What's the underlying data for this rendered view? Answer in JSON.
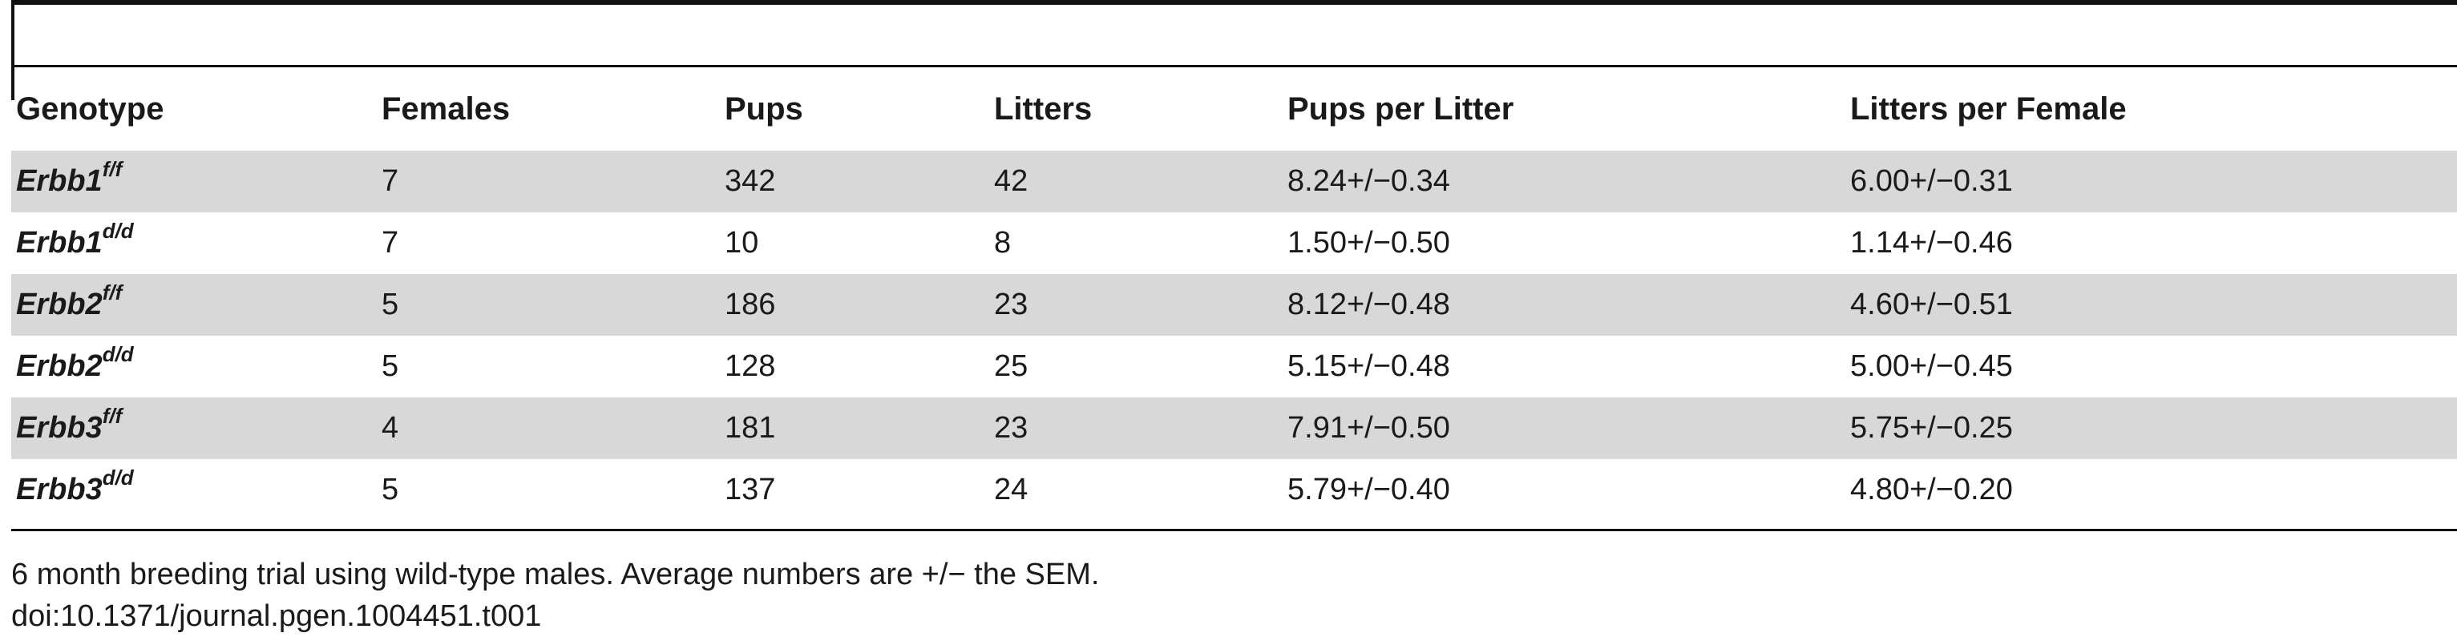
{
  "table": {
    "columns": [
      "Genotype",
      "Females",
      "Pups",
      "Litters",
      "Pups per Litter",
      "Litters per Female"
    ],
    "rows": [
      {
        "gene": "Erbb1",
        "allele": "f/f",
        "females": "7",
        "pups": "342",
        "litters": "42",
        "pups_per_litter": "8.24+/−0.34",
        "litters_per_female": "6.00+/−0.31"
      },
      {
        "gene": "Erbb1",
        "allele": "d/d",
        "females": "7",
        "pups": "10",
        "litters": "8",
        "pups_per_litter": "1.50+/−0.50",
        "litters_per_female": "1.14+/−0.46"
      },
      {
        "gene": "Erbb2",
        "allele": "f/f",
        "females": "5",
        "pups": "186",
        "litters": "23",
        "pups_per_litter": "8.12+/−0.48",
        "litters_per_female": "4.60+/−0.51"
      },
      {
        "gene": "Erbb2",
        "allele": "d/d",
        "females": "5",
        "pups": "128",
        "litters": "25",
        "pups_per_litter": "5.15+/−0.48",
        "litters_per_female": "5.00+/−0.45"
      },
      {
        "gene": "Erbb3",
        "allele": "f/f",
        "females": "4",
        "pups": "181",
        "litters": "23",
        "pups_per_litter": "7.91+/−0.50",
        "litters_per_female": "5.75+/−0.25"
      },
      {
        "gene": "Erbb3",
        "allele": "d/d",
        "females": "5",
        "pups": "137",
        "litters": "24",
        "pups_per_litter": "5.79+/−0.40",
        "litters_per_female": "4.80+/−0.20"
      }
    ]
  },
  "footnote": "6 month breeding trial using wild-type males. Average numbers are +/− the SEM.",
  "doi": "doi:10.1371/journal.pgen.1004451.t001",
  "colors": {
    "row_shade": "#d8d8d8",
    "rule": "#111111",
    "text": "#1a1a1a"
  }
}
